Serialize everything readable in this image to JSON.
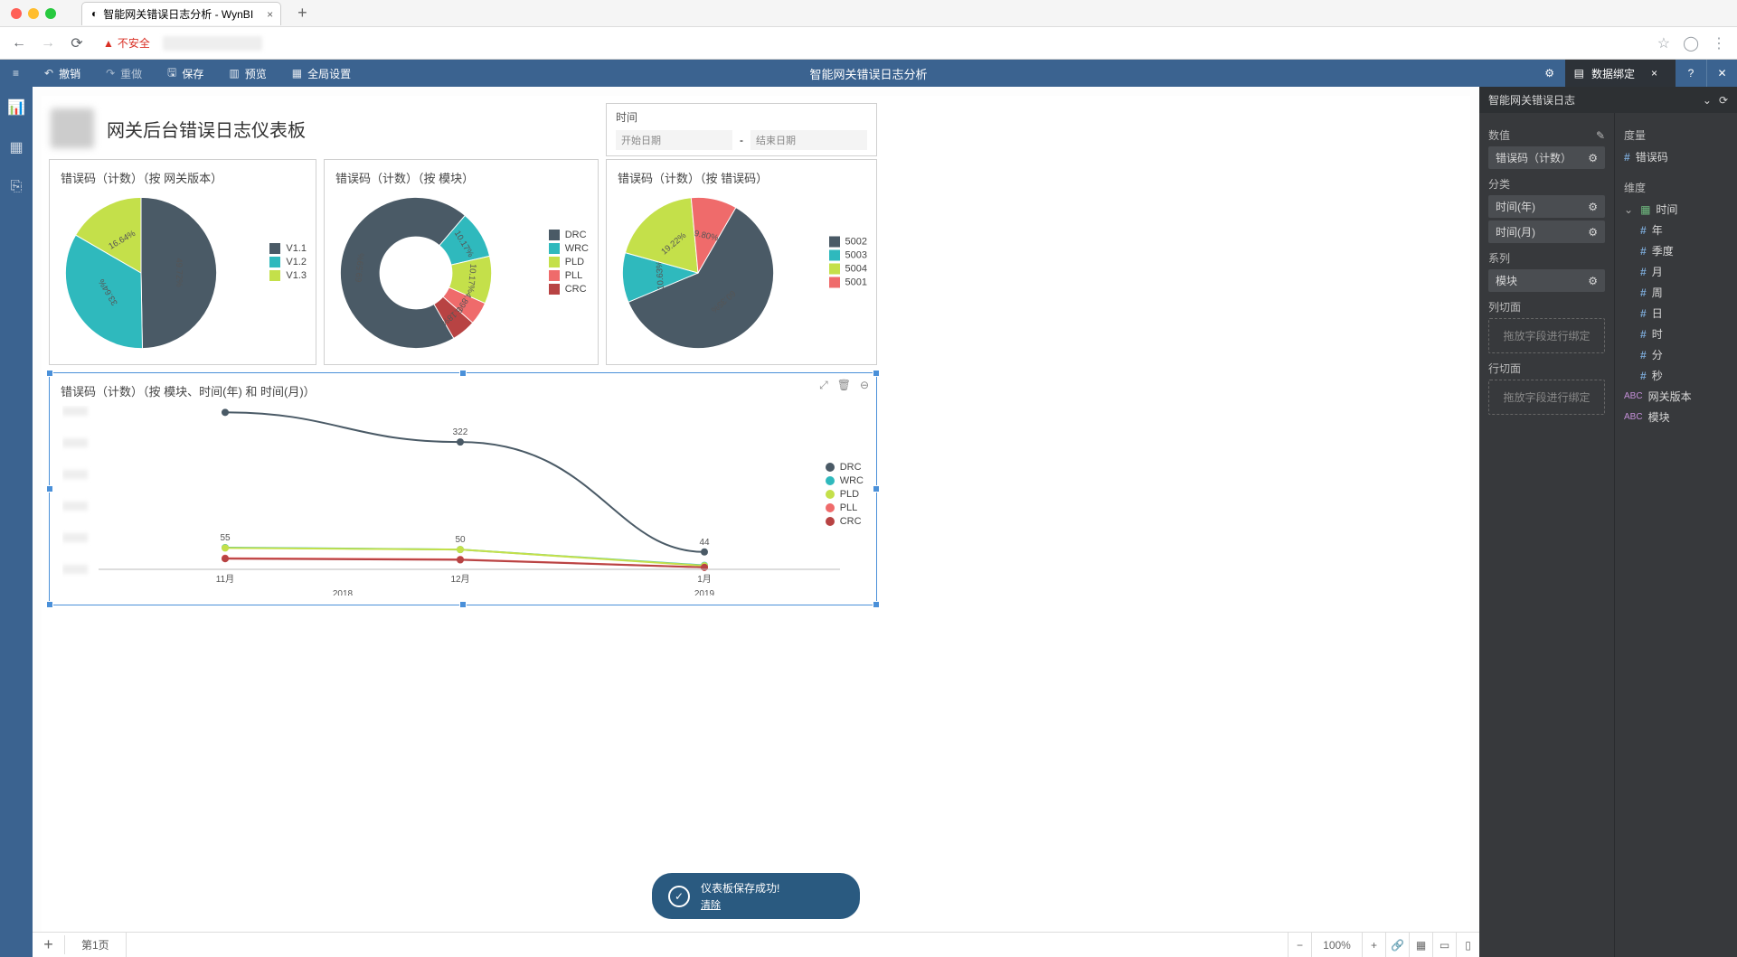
{
  "browser": {
    "tab_title": "智能网关错误日志分析 - WynBI",
    "insecure_label": "不安全"
  },
  "toolbar": {
    "undo": "撤销",
    "redo": "重做",
    "save": "保存",
    "preview": "预览",
    "global_settings": "全局设置",
    "app_title": "智能网关错误日志分析",
    "data_binding": "数据绑定"
  },
  "dashboard": {
    "title": "网关后台错误日志仪表板",
    "time_label": "时间",
    "start_placeholder": "开始日期",
    "end_placeholder": "结束日期",
    "dash": "-"
  },
  "chart1": {
    "title": "错误码（计数）（按 网关版本）",
    "type": "pie",
    "slices": [
      {
        "label": "V1.1",
        "pct": 49.72,
        "color": "#4a5a66"
      },
      {
        "label": "V1.2",
        "pct": 33.64,
        "color": "#2fb9bd"
      },
      {
        "label": "V1.3",
        "pct": 16.64,
        "color": "#c4e04a"
      }
    ]
  },
  "chart2": {
    "title": "错误码（计数）（按 模块）",
    "type": "donut",
    "slices": [
      {
        "label": "DRC",
        "pct": 69.59,
        "color": "#4a5a66"
      },
      {
        "label": "WRC",
        "pct": 10.17,
        "color": "#2fb9bd"
      },
      {
        "label": "PLD",
        "pct": 10.17,
        "color": "#c4e04a"
      },
      {
        "label": "PLL",
        "pct": 4.89,
        "color": "#ef6b6b"
      },
      {
        "label": "CRC",
        "pct": 5.18,
        "color": "#b84343"
      }
    ]
  },
  "chart3": {
    "title": "错误码（计数）（按 错误码）",
    "type": "pie",
    "slices": [
      {
        "label": "5002",
        "pct": 60.35,
        "color": "#4a5a66"
      },
      {
        "label": "5003",
        "pct": 10.63,
        "color": "#2fb9bd"
      },
      {
        "label": "5004",
        "pct": 19.22,
        "color": "#c4e04a"
      },
      {
        "label": "5001",
        "pct": 9.8,
        "color": "#ef6b6b"
      }
    ]
  },
  "chart4": {
    "title": "错误码（计数）（按 模块、时间(年) 和 时间(月)）",
    "type": "line",
    "x_labels": [
      "11月",
      "12月",
      "1月"
    ],
    "x_years": [
      "2018",
      "2018",
      "2019"
    ],
    "year_group_labels": [
      "2018",
      "2019"
    ],
    "series": [
      {
        "name": "DRC",
        "color": "#4a5a66",
        "values": [
          397,
          322,
          44
        ]
      },
      {
        "name": "WRC",
        "color": "#2fb9bd",
        "values": [
          55,
          50,
          10
        ]
      },
      {
        "name": "PLD",
        "color": "#c4e04a",
        "values": [
          54,
          50,
          9
        ]
      },
      {
        "name": "PLL",
        "color": "#ef6b6b",
        "values": [
          28,
          25,
          5
        ]
      },
      {
        "name": "CRC",
        "color": "#b84343",
        "values": [
          27,
          24,
          5
        ]
      }
    ],
    "point_labels": {
      "0": "397",
      "1": "322",
      "2": "44",
      "wrc0": "55",
      "wrc1": "50"
    },
    "y_max": 400
  },
  "toast": {
    "msg": "仪表板保存成功!",
    "clear": "清除"
  },
  "footer": {
    "page1": "第1页",
    "zoom": "100%"
  },
  "rpanel": {
    "dataset": "智能网关错误日志",
    "sec_value": "数值",
    "value_chip": "错误码（计数）",
    "sec_category": "分类",
    "cat_chips": [
      "时间(年)",
      "时间(月)"
    ],
    "sec_series": "系列",
    "series_chip": "模块",
    "sec_col": "列切面",
    "sec_row": "行切面",
    "drop_hint": "拖放字段进行绑定",
    "sec_measure": "度量",
    "measure_field": "错误码",
    "sec_dim": "维度",
    "dim_time": "时间",
    "dim_children": [
      "年",
      "季度",
      "月",
      "周",
      "日",
      "时",
      "分",
      "秒"
    ],
    "dim_ver": "网关版本",
    "dim_module": "模块"
  }
}
